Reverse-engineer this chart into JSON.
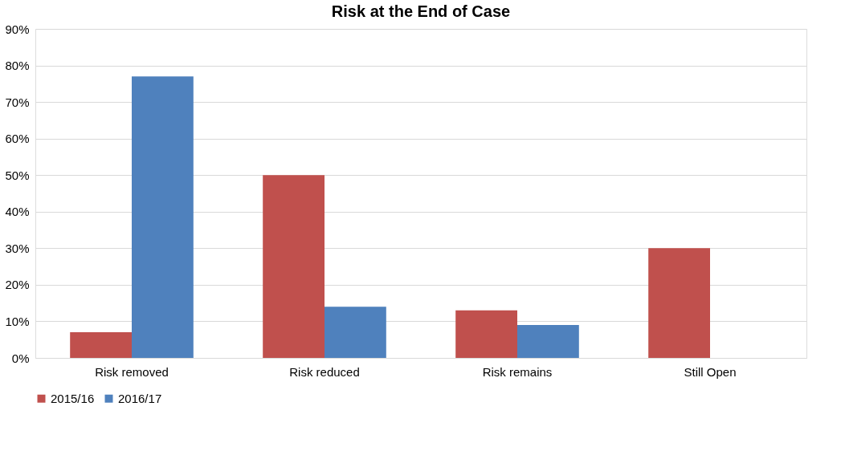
{
  "chart_data": {
    "type": "bar",
    "title": "Risk at the End of Case",
    "categories": [
      "Risk removed",
      "Risk reduced",
      "Risk remains",
      "Still Open"
    ],
    "series": [
      {
        "name": "2015/16",
        "color": "#c0504d",
        "values": [
          7,
          50,
          13,
          30
        ]
      },
      {
        "name": "2016/17",
        "color": "#4f81bd",
        "values": [
          77,
          14,
          9,
          0
        ]
      }
    ],
    "ylim": [
      0,
      90
    ],
    "yticks": [
      {
        "value": 0,
        "label": "0%"
      },
      {
        "value": 10,
        "label": "10%"
      },
      {
        "value": 20,
        "label": "20%"
      },
      {
        "value": 30,
        "label": "30%"
      },
      {
        "value": 40,
        "label": "40%"
      },
      {
        "value": 50,
        "label": "50%"
      },
      {
        "value": 60,
        "label": "60%"
      },
      {
        "value": 70,
        "label": "70%"
      },
      {
        "value": 80,
        "label": "80%"
      },
      {
        "value": 90,
        "label": "90%"
      }
    ],
    "grid": "y",
    "legend": "bottom"
  }
}
